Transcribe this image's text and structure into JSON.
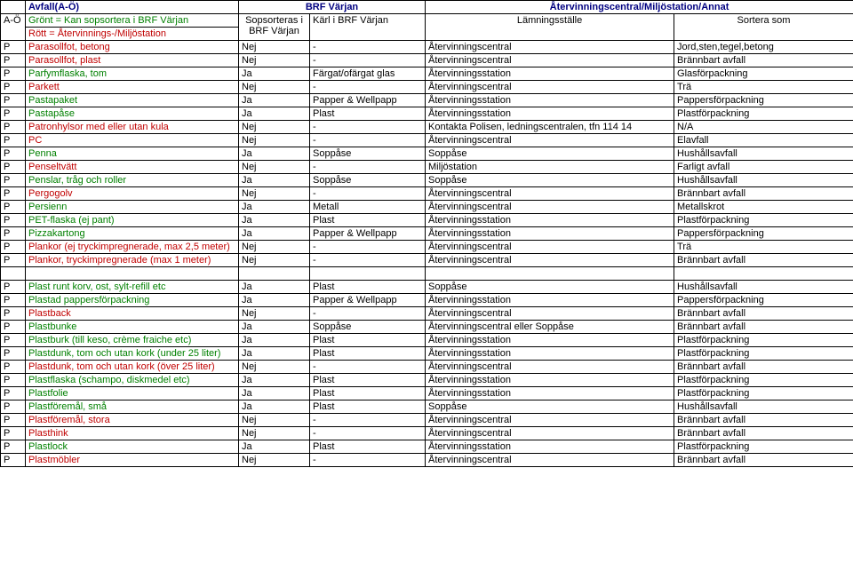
{
  "header": {
    "top": {
      "col1": "Avfall(A-Ö)",
      "col2": "BRF Värjan",
      "col4": "Återvinningscentral/Miljöstation/Annat"
    },
    "legend": {
      "left_letter": "A-Ö",
      "left_green": "Grönt = Kan sopsortera i BRF Värjan",
      "left_red": "Rött = Återvinnings-/Miljöstation",
      "sop": "Sopsorteras i BRF Värjan",
      "karl": "Kärl i BRF Värjan",
      "stalle": "Lämningsställe",
      "sortera": "Sortera som"
    }
  },
  "columns": [
    "",
    "",
    "",
    "",
    "",
    ""
  ],
  "rows": [
    {
      "l": "P",
      "item": "Parasollfot, betong",
      "cls": "red",
      "sop": "Nej",
      "karl": "-",
      "stalle": "Återvinningscentral",
      "sort": "Jord,sten,tegel,betong"
    },
    {
      "l": "P",
      "item": "Parasollfot, plast",
      "cls": "red",
      "sop": "Nej",
      "karl": "-",
      "stalle": "Återvinningscentral",
      "sort": "Brännbart avfall"
    },
    {
      "l": "P",
      "item": "Parfymflaska, tom",
      "cls": "green",
      "sop": "Ja",
      "karl": "Färgat/ofärgat glas",
      "stalle": "Återvinningsstation",
      "sort": "Glasförpackning"
    },
    {
      "l": "P",
      "item": "Parkett",
      "cls": "red",
      "sop": "Nej",
      "karl": "-",
      "stalle": "Återvinningscentral",
      "sort": "Trä"
    },
    {
      "l": "P",
      "item": "Pastapaket",
      "cls": "green",
      "sop": "Ja",
      "karl": "Papper & Wellpapp",
      "stalle": "Återvinningsstation",
      "sort": "Pappersförpackning"
    },
    {
      "l": "P",
      "item": "Pastapåse",
      "cls": "green",
      "sop": "Ja",
      "karl": "Plast",
      "stalle": "Återvinningsstation",
      "sort": "Plastförpackning"
    },
    {
      "l": "P",
      "item": "Patronhylsor med eller utan kula",
      "cls": "red",
      "sop": "Nej",
      "karl": "-",
      "stalle": "Kontakta Polisen, ledningscentralen, tfn 114 14",
      "sort": "N/A"
    },
    {
      "l": "P",
      "item": "PC",
      "cls": "red",
      "sop": "Nej",
      "karl": "-",
      "stalle": "Återvinningscentral",
      "sort": "Elavfall"
    },
    {
      "l": "P",
      "item": "Penna",
      "cls": "green",
      "sop": "Ja",
      "karl": "Soppåse",
      "stalle": "Soppåse",
      "sort": "Hushållsavfall"
    },
    {
      "l": "P",
      "item": "Penseltvätt",
      "cls": "red",
      "sop": "Nej",
      "karl": "-",
      "stalle": "Miljöstation",
      "sort": "Farligt avfall"
    },
    {
      "l": "P",
      "item": "Penslar, tråg och roller",
      "cls": "green",
      "sop": "Ja",
      "karl": "Soppåse",
      "stalle": "Soppåse",
      "sort": "Hushållsavfall"
    },
    {
      "l": "P",
      "item": "Pergogolv",
      "cls": "red",
      "sop": "Nej",
      "karl": "-",
      "stalle": "Återvinningscentral",
      "sort": "Brännbart avfall"
    },
    {
      "l": "P",
      "item": "Persienn",
      "cls": "green",
      "sop": "Ja",
      "karl": "Metall",
      "stalle": "Återvinningscentral",
      "sort": "Metallskrot"
    },
    {
      "l": "P",
      "item": "PET-flaska (ej pant)",
      "cls": "green",
      "sop": "Ja",
      "karl": "Plast",
      "stalle": "Återvinningsstation",
      "sort": "Plastförpackning"
    },
    {
      "l": "P",
      "item": "Pizzakartong",
      "cls": "green",
      "sop": "Ja",
      "karl": "Papper & Wellpapp",
      "stalle": "Återvinningsstation",
      "sort": "Pappersförpackning"
    },
    {
      "l": "P",
      "item": "Plankor (ej tryckimpregnerade, max 2,5 meter)",
      "cls": "red",
      "sop": "Nej",
      "karl": "-",
      "stalle": "Återvinningscentral",
      "sort": "Trä"
    },
    {
      "l": "P",
      "item": "Plankor, tryckimpregnerade (max 1 meter)",
      "cls": "red",
      "sop": "Nej",
      "karl": "-",
      "stalle": "Återvinningscentral",
      "sort": "Brännbart avfall"
    },
    {
      "spacer": true
    },
    {
      "l": "P",
      "item": "Plast runt korv, ost, sylt-refill etc",
      "cls": "green",
      "sop": "Ja",
      "karl": "Plast",
      "stalle": "Soppåse",
      "sort": "Hushållsavfall"
    },
    {
      "l": "P",
      "item": "Plastad pappersförpackning",
      "cls": "green",
      "sop": "Ja",
      "karl": "Papper & Wellpapp",
      "stalle": "Återvinningsstation",
      "sort": "Pappersförpackning"
    },
    {
      "l": "P",
      "item": "Plastback",
      "cls": "red",
      "sop": "Nej",
      "karl": "-",
      "stalle": "Återvinningscentral",
      "sort": "Brännbart avfall"
    },
    {
      "l": "P",
      "item": "Plastbunke",
      "cls": "green",
      "sop": "Ja",
      "karl": "Soppåse",
      "stalle": "Återvinningscentral eller Soppåse",
      "sort": "Brännbart avfall"
    },
    {
      "l": "P",
      "item": "Plastburk (till keso, crème fraiche etc)",
      "cls": "green",
      "sop": "Ja",
      "karl": "Plast",
      "stalle": "Återvinningsstation",
      "sort": "Plastförpackning"
    },
    {
      "l": "P",
      "item": "Plastdunk, tom och utan kork (under 25 liter)",
      "cls": "green",
      "sop": "Ja",
      "karl": "Plast",
      "stalle": "Återvinningsstation",
      "sort": "Plastförpackning"
    },
    {
      "l": "P",
      "item": "Plastdunk, tom och utan kork (över 25 liter)",
      "cls": "red",
      "sop": "Nej",
      "karl": "-",
      "stalle": "Återvinningscentral",
      "sort": "Brännbart avfall"
    },
    {
      "l": "P",
      "item": "Plastflaska (schampo, diskmedel etc)",
      "cls": "green",
      "sop": "Ja",
      "karl": "Plast",
      "stalle": "Återvinningsstation",
      "sort": "Plastförpackning"
    },
    {
      "l": "P",
      "item": "Plastfolie",
      "cls": "green",
      "sop": "Ja",
      "karl": "Plast",
      "stalle": "Återvinningsstation",
      "sort": "Plastförpackning"
    },
    {
      "l": "P",
      "item": "Plastföremål, små",
      "cls": "green",
      "sop": "Ja",
      "karl": "Plast",
      "stalle": "Soppåse",
      "sort": "Hushållsavfall"
    },
    {
      "l": "P",
      "item": "Plastföremål, stora",
      "cls": "red",
      "sop": "Nej",
      "karl": "-",
      "stalle": "Återvinningscentral",
      "sort": "Brännbart avfall"
    },
    {
      "l": "P",
      "item": "Plasthink",
      "cls": "red",
      "sop": "Nej",
      "karl": "-",
      "stalle": "Återvinningscentral",
      "sort": "Brännbart avfall"
    },
    {
      "l": "P",
      "item": "Plastlock",
      "cls": "green",
      "sop": "Ja",
      "karl": "Plast",
      "stalle": "Återvinningsstation",
      "sort": "Plastförpackning"
    },
    {
      "l": "P",
      "item": "Plastmöbler",
      "cls": "red",
      "sop": "Nej",
      "karl": "-",
      "stalle": "Återvinningscentral",
      "sort": "Brännbart avfall"
    }
  ]
}
